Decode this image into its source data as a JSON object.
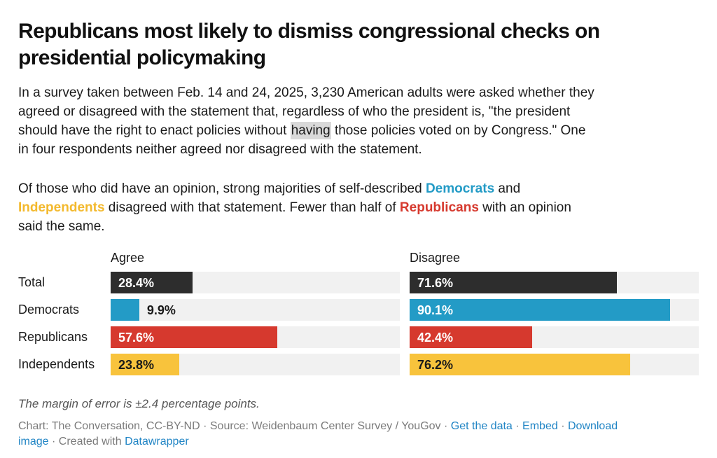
{
  "title": {
    "full": "Republicans most likely to dismiss congressional checks on presidential policymaking",
    "line1": "Republicans most likely to dismiss congressional checks on",
    "line2": "presidential policymaking"
  },
  "intro_segments": [
    {
      "t": "In a survey taken between Feb. 14 and 24, 2025, 3,230 American adults were asked whether they"
    },
    {
      "s": "br"
    },
    {
      "t": "agreed or disagreed with the statement that, regardless of who the president is, \"the president"
    },
    {
      "s": "br"
    },
    {
      "t": "should have the right to enact policies without "
    },
    {
      "t": "having",
      "s": "hl",
      "n": "highlighted-word-having"
    },
    {
      "t": " those policies voted on by Congress.\" One"
    },
    {
      "s": "br"
    },
    {
      "t": "in four respondents neither agreed nor disagreed with the statement."
    }
  ],
  "opinion_segments": [
    {
      "t": "Of those who did have an opinion, strong majorities of self-described "
    },
    {
      "t": "Democrats",
      "s": "b-blue",
      "n": "democrats-colored-text"
    },
    {
      "t": " and"
    },
    {
      "s": "br"
    },
    {
      "t": "Independents",
      "s": "b-yellow",
      "n": "independents-colored-text"
    },
    {
      "t": " disagreed with that statement. Fewer than half of "
    },
    {
      "t": "Republicans",
      "s": "b-red",
      "n": "republicans-colored-text"
    },
    {
      "t": " with an opinion"
    },
    {
      "s": "br"
    },
    {
      "t": "said the same."
    }
  ],
  "chart_data": {
    "type": "bar",
    "orientation": "horizontal",
    "title": "Republicans most likely to dismiss congressional checks on presidential policymaking",
    "categories": [
      "Total",
      "Democrats",
      "Republicans",
      "Independents"
    ],
    "series": [
      {
        "name": "Agree",
        "values": [
          28.4,
          9.9,
          57.6,
          23.8
        ],
        "labels": [
          "28.4%",
          "9.9%",
          "57.6%",
          "23.8%"
        ]
      },
      {
        "name": "Disagree",
        "values": [
          71.6,
          90.1,
          42.4,
          76.2
        ],
        "labels": [
          "71.6%",
          "90.1%",
          "42.4%",
          "76.2%"
        ]
      }
    ],
    "xlim": [
      0,
      100
    ],
    "value_suffix": "%",
    "grid": "off",
    "legend_position": "column-headers",
    "bar_colors": [
      "#2d2d2d",
      "#239bc6",
      "#d6392e",
      "#f8c33c"
    ],
    "inside_label_colors": [
      "#ffffff",
      "#ffffff",
      "#ffffff",
      "#1a1a1a"
    ],
    "outside_label_color": "#1a1a1a",
    "outside_label_threshold": 12,
    "track_color": "#f1f1f1"
  },
  "note": "The margin of error is ±2.4 percentage points.",
  "footer_segments": [
    {
      "t": "Chart: The Conversation, CC-BY-ND · Source: Weidenbaum Center Survey / YouGov · "
    },
    {
      "t": "Get the data",
      "s": "link",
      "n": "get-the-data-link"
    },
    {
      "t": " · "
    },
    {
      "t": "Embed",
      "s": "link",
      "n": "embed-link"
    },
    {
      "t": "  · "
    },
    {
      "t": "Download",
      "s": "link",
      "n": "download-image-link"
    },
    {
      "s": "br"
    },
    {
      "t": "image",
      "s": "link",
      "n": "download-image-link-wrap"
    },
    {
      "t": " · Created with "
    },
    {
      "t": "Datawrapper",
      "s": "link",
      "n": "datawrapper-link"
    }
  ],
  "colors": {
    "blue": "#239bc6",
    "yellow": "#f3b92d",
    "red": "#d6392e",
    "dark": "#2d2d2d",
    "track": "#f1f1f1",
    "highlight": "#d9d9d9",
    "link": "#2185c5"
  }
}
